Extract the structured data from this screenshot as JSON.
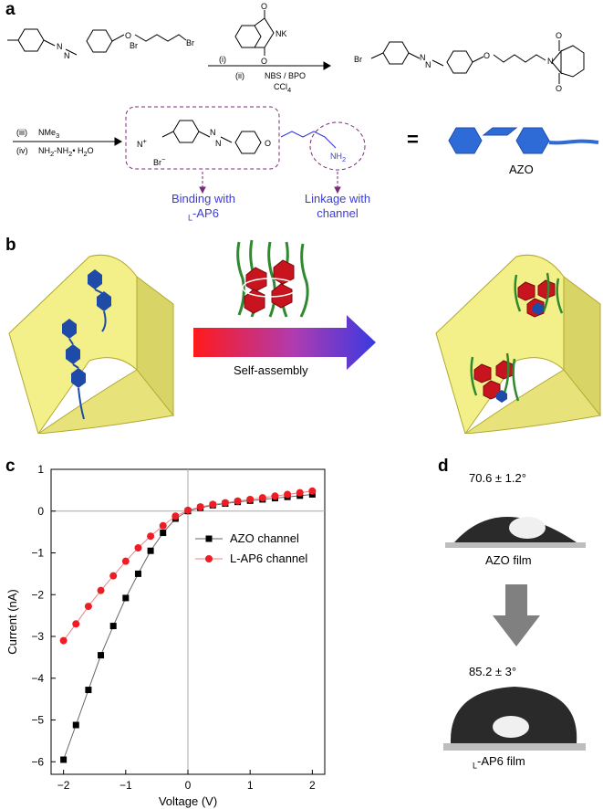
{
  "panels": {
    "a": "a",
    "b": "b",
    "c": "c",
    "d": "d"
  },
  "scheme": {
    "step1_reagent": "(i)",
    "reagent_nk": "NK",
    "reagent_o": "O",
    "step2_reagent": "(ii)",
    "step2_label": "NBS / BPO",
    "step2_solvent": "CCl",
    "step2_solvent_sub": "4",
    "step3_reagent": "(iii)",
    "step3_label": "NMe",
    "step3_sub": "3",
    "step4_reagent": "(iv)",
    "step4_label": "NH",
    "step4_tail": "-NH",
    "step4_tail2": "• H",
    "step4_tail3": "O",
    "br_label": "Br",
    "o_label": "O",
    "n_label": "N",
    "nh2_label": "NH",
    "nh2_sub": "2",
    "ammonium": "N",
    "bromide": "Br",
    "equals": "=",
    "azo_label": "AZO",
    "binding_line1": "Binding with",
    "binding_line2_prefix": "L",
    "binding_line2": "-AP6",
    "linkage_line1": "Linkage with",
    "linkage_line2": "channel"
  },
  "assembly": {
    "arrow_label": "Self-assembly",
    "colors": {
      "channel": "#f3f08a",
      "azo": "#2e5dbf",
      "ap6": "#c8141e",
      "chain": "#2f8a2f"
    }
  },
  "chart_data": {
    "type": "scatter",
    "xlabel": "Voltage (V)",
    "ylabel": "Current (nA)",
    "xlim": [
      -2.2,
      2.2
    ],
    "ylim": [
      -6.3,
      1.0
    ],
    "xticks": [
      -2,
      -1,
      0,
      1,
      2
    ],
    "xtick_labels": [
      "−2",
      "−1",
      "0",
      "1",
      "2"
    ],
    "yticks": [
      1,
      0,
      -1,
      -2,
      -3,
      -4,
      -5,
      -6
    ],
    "ytick_labels": [
      "1",
      "0",
      "−1",
      "−2",
      "−3",
      "−4",
      "−5",
      "−6"
    ],
    "legend_position": "center-right",
    "x": [
      -2.0,
      -1.8,
      -1.6,
      -1.4,
      -1.2,
      -1.0,
      -0.8,
      -0.6,
      -0.4,
      -0.2,
      0.0,
      0.2,
      0.4,
      0.6,
      0.8,
      1.0,
      1.2,
      1.4,
      1.6,
      1.8,
      2.0
    ],
    "series": [
      {
        "name": "AZO channel",
        "color": "#000000",
        "marker": "square",
        "values": [
          -5.95,
          -5.12,
          -4.28,
          -3.45,
          -2.75,
          -2.08,
          -1.5,
          -0.95,
          -0.52,
          -0.18,
          0.0,
          0.08,
          0.14,
          0.18,
          0.22,
          0.25,
          0.28,
          0.31,
          0.34,
          0.37,
          0.4
        ]
      },
      {
        "name": "L-AP6 channel",
        "color": "#ee1c24",
        "marker": "circle",
        "values": [
          -3.1,
          -2.7,
          -2.28,
          -1.9,
          -1.55,
          -1.2,
          -0.88,
          -0.6,
          -0.35,
          -0.12,
          0.02,
          0.1,
          0.16,
          0.2,
          0.24,
          0.28,
          0.32,
          0.36,
          0.4,
          0.44,
          0.48
        ]
      }
    ]
  },
  "contact_angle": {
    "azo_angle": "70.6 ± 1.2°",
    "azo_label": "AZO film",
    "ap6_angle": "85.2 ± 3°",
    "ap6_label_prefix": "L",
    "ap6_label": "-AP6 film"
  }
}
